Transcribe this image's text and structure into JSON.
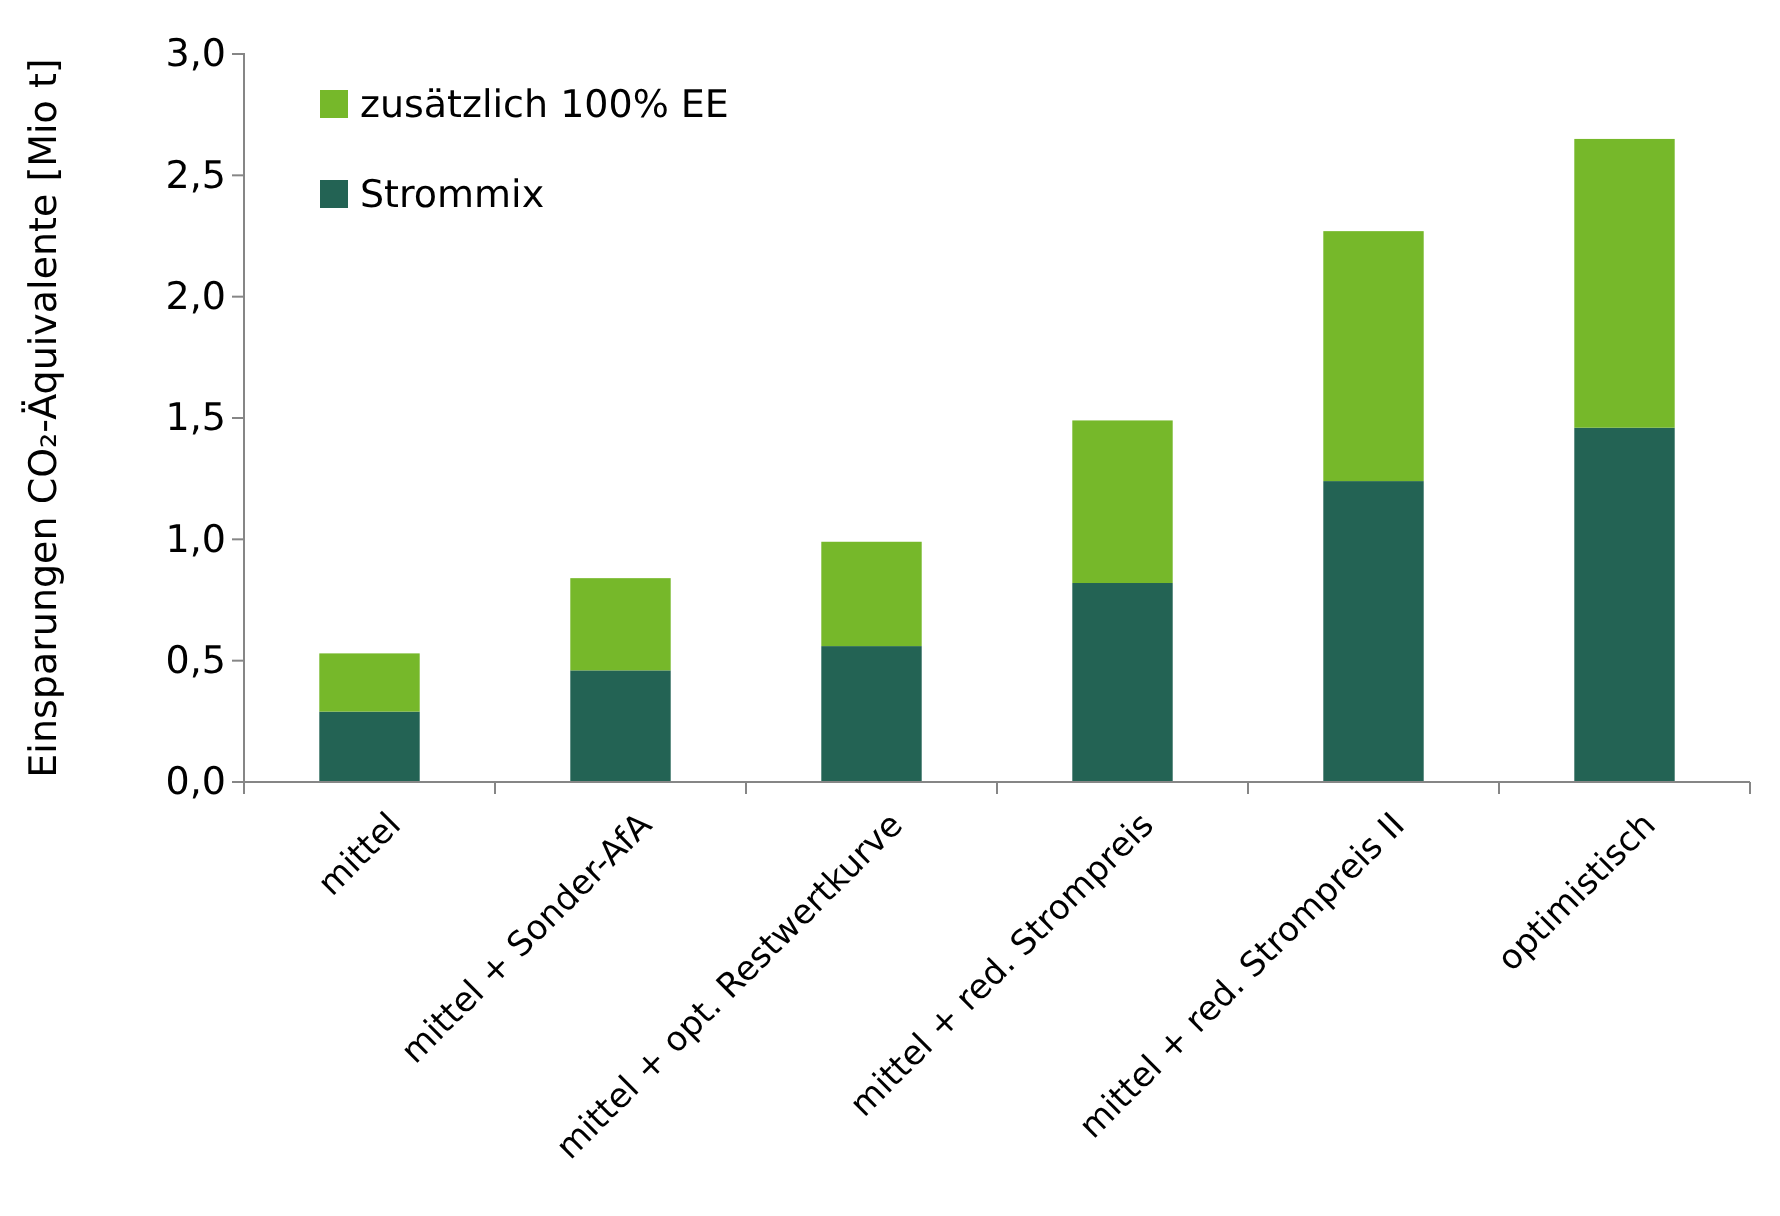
{
  "chart_data": {
    "type": "bar",
    "stacked": true,
    "ylabel": "Einsparungen CO₂-Äquivalente [Mio t]",
    "categories": [
      "mittel",
      "mittel + Sonder-AfA",
      "mittel + opt. Restwertkurve",
      "mittel + red. Strompreis",
      "mittel + red. Strompreis II",
      "optimistisch"
    ],
    "series": [
      {
        "name": "Strommix",
        "color": "#236354",
        "values": [
          0.29,
          0.46,
          0.56,
          0.82,
          1.24,
          1.46
        ]
      },
      {
        "name": "zusätzlich 100% EE",
        "color": "#76b82a",
        "values": [
          0.24,
          0.38,
          0.43,
          0.67,
          1.03,
          1.19
        ]
      }
    ],
    "ylim": [
      0,
      3
    ],
    "yticks": [
      {
        "value": 0,
        "label": "0,0"
      },
      {
        "value": 0.5,
        "label": "0,5"
      },
      {
        "value": 1,
        "label": "1,0"
      },
      {
        "value": 1.5,
        "label": "1,5"
      },
      {
        "value": 2,
        "label": "2,0"
      },
      {
        "value": 2.5,
        "label": "2,5"
      },
      {
        "value": 3,
        "label": "3,0"
      }
    ],
    "grid": false,
    "legend": "top left"
  }
}
